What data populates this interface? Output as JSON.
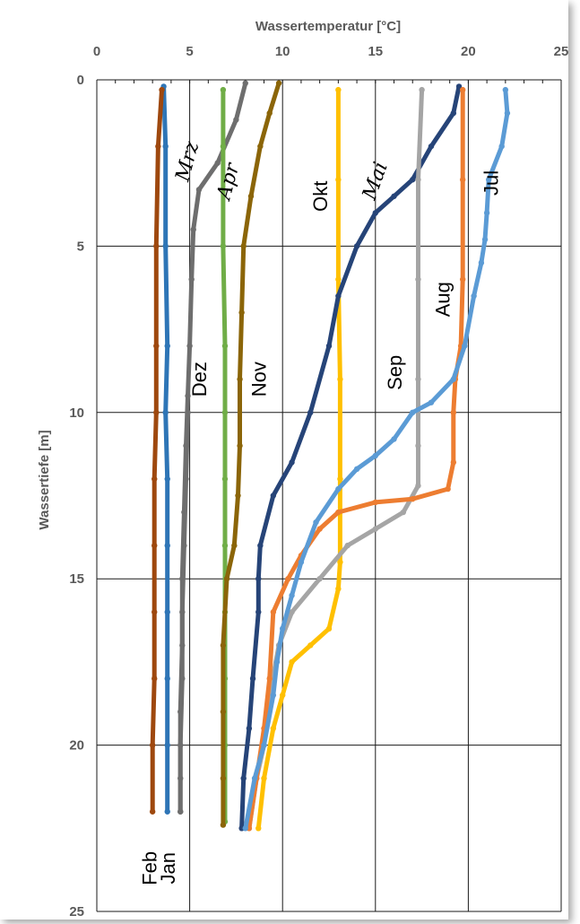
{
  "chart_data": {
    "type": "line",
    "xlabel": "Wassertemperatur [°C]",
    "ylabel": "Wassertiefe [m]",
    "xlim": [
      0,
      25
    ],
    "ylim": [
      0,
      25
    ],
    "y_inverted": true,
    "x_axis_position": "top",
    "x_ticks": [
      "0",
      "5",
      "10",
      "15",
      "20",
      "25"
    ],
    "y_ticks": [
      "0",
      "5",
      "10",
      "15",
      "20",
      "25"
    ],
    "grid": true,
    "legend": "none (inline labels)",
    "series": [
      {
        "name": "Jan",
        "color": "#2E75B6",
        "label_style": "sans",
        "points": [
          [
            3.6,
            0.2
          ],
          [
            3.7,
            2
          ],
          [
            3.7,
            5
          ],
          [
            3.8,
            8
          ],
          [
            3.7,
            10
          ],
          [
            3.8,
            12
          ],
          [
            3.8,
            14
          ],
          [
            3.8,
            16
          ],
          [
            3.8,
            18
          ],
          [
            3.8,
            20
          ],
          [
            3.8,
            22
          ]
        ]
      },
      {
        "name": "Feb",
        "color": "#9E480E",
        "label_style": "sans",
        "points": [
          [
            3.5,
            0.3
          ],
          [
            3.3,
            2
          ],
          [
            3.2,
            5
          ],
          [
            3.2,
            8
          ],
          [
            3.2,
            10
          ],
          [
            3.1,
            12
          ],
          [
            3.1,
            14
          ],
          [
            3.1,
            16
          ],
          [
            3.1,
            18
          ],
          [
            3.0,
            20
          ],
          [
            3.0,
            22
          ]
        ]
      },
      {
        "name": "Mrz",
        "color": "#6E6E6E",
        "label_style": "serif-italic",
        "points": [
          [
            8.0,
            0.1
          ],
          [
            7.5,
            1.2
          ],
          [
            6.5,
            2.5
          ],
          [
            5.5,
            3.3
          ],
          [
            5.2,
            4.5
          ],
          [
            5.1,
            6
          ],
          [
            5.0,
            8
          ],
          [
            4.9,
            9.5
          ],
          [
            4.8,
            11
          ],
          [
            4.7,
            13
          ],
          [
            4.6,
            15
          ],
          [
            4.6,
            17
          ],
          [
            4.5,
            19
          ],
          [
            4.5,
            21
          ],
          [
            4.5,
            22
          ]
        ]
      },
      {
        "name": "Dez",
        "color": "#6E6E6E",
        "label_style": "sans",
        "points": [
          [
            4.9,
            10
          ],
          [
            4.8,
            12
          ],
          [
            4.7,
            14
          ],
          [
            4.6,
            16
          ],
          [
            4.6,
            18
          ],
          [
            4.5,
            20
          ],
          [
            4.5,
            22
          ]
        ]
      },
      {
        "name": "Apr",
        "color": "#70AD47",
        "label_style": "serif-italic",
        "points": [
          [
            6.8,
            0.3
          ],
          [
            6.8,
            2
          ],
          [
            6.8,
            5
          ],
          [
            6.9,
            8
          ],
          [
            6.9,
            10
          ],
          [
            6.9,
            12
          ],
          [
            6.9,
            14
          ],
          [
            6.9,
            16
          ],
          [
            6.9,
            18
          ],
          [
            6.9,
            20
          ],
          [
            6.9,
            22.3
          ]
        ]
      },
      {
        "name": "Nov",
        "color": "#8B6508",
        "label_style": "sans",
        "points": [
          [
            9.8,
            0.1
          ],
          [
            9.3,
            1
          ],
          [
            8.8,
            2
          ],
          [
            8.3,
            3.5
          ],
          [
            7.9,
            5
          ],
          [
            7.8,
            7
          ],
          [
            7.7,
            9
          ],
          [
            7.7,
            11
          ],
          [
            7.6,
            12.5
          ],
          [
            7.4,
            14
          ],
          [
            7.0,
            15
          ],
          [
            6.8,
            17
          ],
          [
            6.8,
            19
          ],
          [
            6.8,
            21
          ],
          [
            6.8,
            22.4
          ]
        ]
      },
      {
        "name": "Okt",
        "color": "#FFC000",
        "label_style": "sans",
        "points": [
          [
            13.0,
            0.3
          ],
          [
            13.0,
            3
          ],
          [
            13.0,
            6
          ],
          [
            13.1,
            9
          ],
          [
            13.1,
            12
          ],
          [
            13.1,
            14.5
          ],
          [
            13.0,
            15.3
          ],
          [
            12.5,
            16.5
          ],
          [
            11.5,
            17
          ],
          [
            10.5,
            17.5
          ],
          [
            10.0,
            18.5
          ],
          [
            9.5,
            19.5
          ],
          [
            9.0,
            21
          ],
          [
            8.7,
            22.5
          ]
        ]
      },
      {
        "name": "Mai",
        "color": "#264478",
        "label_style": "serif-italic",
        "points": [
          [
            19.5,
            0.2
          ],
          [
            19.2,
            1
          ],
          [
            18.0,
            2
          ],
          [
            17.0,
            3
          ],
          [
            16.0,
            3.5
          ],
          [
            15.0,
            4
          ],
          [
            14.0,
            5
          ],
          [
            13.0,
            6.5
          ],
          [
            12.5,
            8
          ],
          [
            11.5,
            10
          ],
          [
            10.5,
            11.5
          ],
          [
            9.5,
            12.5
          ],
          [
            8.8,
            14
          ],
          [
            8.7,
            15
          ],
          [
            8.7,
            16
          ],
          [
            8.4,
            18
          ],
          [
            8.2,
            19.5
          ],
          [
            7.9,
            21
          ],
          [
            7.8,
            22.5
          ]
        ]
      },
      {
        "name": "Sep",
        "color": "#A5A5A5",
        "label_style": "sans",
        "points": [
          [
            17.5,
            0.3
          ],
          [
            17.3,
            3
          ],
          [
            17.3,
            6
          ],
          [
            17.3,
            9
          ],
          [
            17.3,
            11
          ],
          [
            17.3,
            12.2
          ],
          [
            16.5,
            13
          ],
          [
            15.0,
            13.5
          ],
          [
            13.5,
            14
          ],
          [
            12.0,
            15
          ],
          [
            10.5,
            16
          ],
          [
            9.8,
            17
          ],
          [
            9.3,
            18.5
          ],
          [
            9.0,
            20
          ],
          [
            8.6,
            21
          ],
          [
            8.2,
            22.5
          ]
        ]
      },
      {
        "name": "Aug",
        "color": "#ED7D31",
        "label_style": "sans",
        "points": [
          [
            19.7,
            0.3
          ],
          [
            19.7,
            3
          ],
          [
            19.7,
            6
          ],
          [
            19.6,
            8
          ],
          [
            19.3,
            9
          ],
          [
            19.2,
            10
          ],
          [
            19.2,
            11.5
          ],
          [
            18.9,
            12.3
          ],
          [
            17.0,
            12.6
          ],
          [
            15.0,
            12.7
          ],
          [
            13.0,
            13
          ],
          [
            12.0,
            13.5
          ],
          [
            11.0,
            14.3
          ],
          [
            10.3,
            15
          ],
          [
            9.5,
            16
          ],
          [
            9.3,
            18
          ],
          [
            9.0,
            19.5
          ],
          [
            8.6,
            21
          ],
          [
            8.2,
            22.5
          ]
        ]
      },
      {
        "name": "Jul",
        "color": "#5B9BD5",
        "label_style": "sans",
        "points": [
          [
            22.0,
            0.3
          ],
          [
            22.1,
            1
          ],
          [
            21.8,
            2
          ],
          [
            21.1,
            3
          ],
          [
            21.0,
            4
          ],
          [
            20.9,
            4.8
          ],
          [
            20.7,
            5.5
          ],
          [
            20.3,
            6.5
          ],
          [
            19.8,
            8
          ],
          [
            19.2,
            9
          ],
          [
            18.0,
            9.7
          ],
          [
            17.0,
            10
          ],
          [
            16.0,
            10.8
          ],
          [
            15.0,
            11.3
          ],
          [
            14.0,
            11.7
          ],
          [
            13.0,
            12.3
          ],
          [
            11.8,
            13.3
          ],
          [
            11.0,
            14.5
          ],
          [
            10.5,
            15.5
          ],
          [
            10.0,
            16.5
          ],
          [
            9.7,
            17.5
          ],
          [
            9.5,
            18.5
          ],
          [
            9.0,
            20
          ],
          [
            8.5,
            21
          ],
          [
            8.0,
            22.5
          ]
        ]
      }
    ],
    "labels": [
      {
        "series": "Mrz",
        "text": "Mrz",
        "at": [
          5.2,
          2.5
        ],
        "rotate": -75
      },
      {
        "series": "Apr",
        "text": "Apr",
        "at": [
          7.4,
          3.1
        ],
        "rotate": -75
      },
      {
        "series": "Okt",
        "text": "Okt",
        "at": [
          12.4,
          3.5
        ],
        "rotate": -90
      },
      {
        "series": "Mai",
        "text": "Mai",
        "at": [
          15.3,
          3.1
        ],
        "rotate": -70
      },
      {
        "series": "Jul",
        "text": "Jul",
        "at": [
          21.6,
          3.1
        ],
        "rotate": -90
      },
      {
        "series": "Aug",
        "text": "Aug",
        "at": [
          19.0,
          6.6
        ],
        "rotate": -90
      },
      {
        "series": "Dez",
        "text": "Dez",
        "at": [
          5.9,
          9.0
        ],
        "rotate": -90
      },
      {
        "series": "Nov",
        "text": "Nov",
        "at": [
          9.1,
          9.0
        ],
        "rotate": -90
      },
      {
        "series": "Sep",
        "text": "Sep",
        "at": [
          16.4,
          8.8
        ],
        "rotate": -90
      },
      {
        "series": "Feb",
        "text": "Feb",
        "at": [
          3.2,
          23.7
        ],
        "rotate": -90
      },
      {
        "series": "Jan",
        "text": "Jan",
        "at": [
          4.2,
          23.7
        ],
        "rotate": -90
      }
    ]
  }
}
